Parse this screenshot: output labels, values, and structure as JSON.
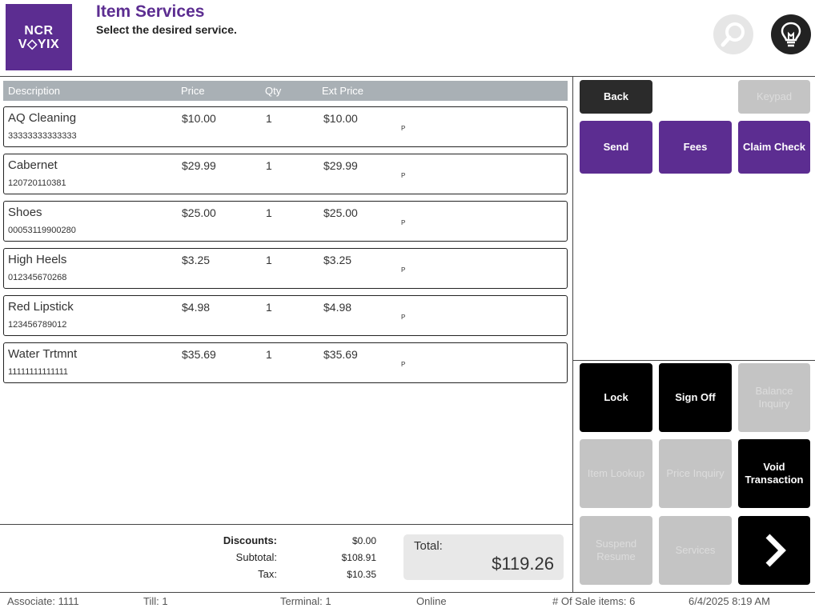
{
  "header": {
    "logo_line1": "NCR",
    "logo_line2": "V◇YIX",
    "title": "Item Services",
    "subtitle": "Select the desired service."
  },
  "list": {
    "columns": {
      "description": "Description",
      "price": "Price",
      "qty": "Qty",
      "ext_price": "Ext Price"
    },
    "items": [
      {
        "desc": "AQ Cleaning",
        "code": "33333333333333",
        "price": "$10.00",
        "qty": "1",
        "ext": "$10.00",
        "flag": "P"
      },
      {
        "desc": "Cabernet",
        "code": "120720110381",
        "price": "$29.99",
        "qty": "1",
        "ext": "$29.99",
        "flag": "P"
      },
      {
        "desc": "Shoes",
        "code": "00053119900280",
        "price": "$25.00",
        "qty": "1",
        "ext": "$25.00",
        "flag": "P"
      },
      {
        "desc": "High Heels",
        "code": "012345670268",
        "price": "$3.25",
        "qty": "1",
        "ext": "$3.25",
        "flag": "P"
      },
      {
        "desc": "Red Lipstick",
        "code": "123456789012",
        "price": "$4.98",
        "qty": "1",
        "ext": "$4.98",
        "flag": "P"
      },
      {
        "desc": "Water Trtmnt",
        "code": "11111111111111",
        "price": "$35.69",
        "qty": "1",
        "ext": "$35.69",
        "flag": "P"
      }
    ]
  },
  "totals": {
    "discounts_label": "Discounts:",
    "discounts": "$0.00",
    "subtotal_label": "Subtotal:",
    "subtotal": "$108.91",
    "tax_label": "Tax:",
    "tax": "$10.35",
    "total_label": "Total:",
    "total": "$119.26"
  },
  "service_buttons": {
    "back": "Back",
    "keypad": "Keypad",
    "send": "Send",
    "fees": "Fees",
    "claim_check": "Claim Check"
  },
  "function_buttons": {
    "lock": "Lock",
    "sign_off": "Sign Off",
    "balance_inquiry": "Balance Inquiry",
    "item_lookup": "Item Lookup",
    "price_inquiry": "Price Inquiry",
    "void_transaction": "Void Transaction",
    "suspend_resume": "Suspend Resume",
    "services": "Services"
  },
  "status_bar": {
    "associate": "Associate: 1111",
    "till": "Till: 1",
    "terminal": "Terminal: 1",
    "connection": "Online",
    "sale_items": "# Of Sale items: 6",
    "datetime": "6/4/2025 8:19 AM"
  },
  "colors": {
    "brand": "#5c2d91",
    "dark": "#2b2b2b",
    "disabled": "#c4c4c4",
    "list_header": "#a9b0b5"
  },
  "icons": {
    "search": "search-icon",
    "hint": "lightbulb-icon",
    "next": "arrow-right-icon"
  }
}
